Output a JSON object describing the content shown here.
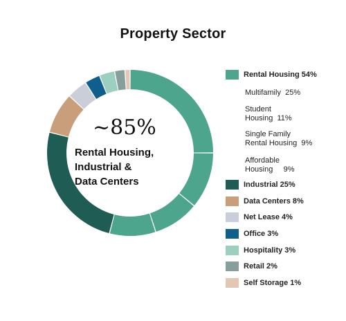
{
  "chart_data": {
    "type": "pie",
    "title": "Property Sector",
    "center_text": {
      "big": "~85%",
      "lines": [
        "Rental Housing,",
        "Industrial &",
        "Data Centers"
      ]
    },
    "slices": [
      {
        "key": "multifamily",
        "value": 25,
        "color": "#4da58e"
      },
      {
        "key": "student",
        "value": 11,
        "color": "#4da58e"
      },
      {
        "key": "single",
        "value": 9,
        "color": "#4da58e"
      },
      {
        "key": "affordable",
        "value": 9,
        "color": "#4da58e"
      },
      {
        "key": "industrial",
        "value": 25,
        "color": "#1e5c54"
      },
      {
        "key": "data_centers",
        "value": 8,
        "color": "#c89f7a"
      },
      {
        "key": "net_lease",
        "value": 4,
        "color": "#c9ced8"
      },
      {
        "key": "office",
        "value": 3,
        "color": "#0f5f8c"
      },
      {
        "key": "hospitality",
        "value": 3,
        "color": "#9ccfc0"
      },
      {
        "key": "retail",
        "value": 2,
        "color": "#869e9c"
      },
      {
        "key": "self_storage",
        "value": 1,
        "color": "#e2c8b2"
      }
    ],
    "legend": {
      "rental_housing": {
        "label": "Rental Housing",
        "value": "54%",
        "color": "#4da58e"
      },
      "multifamily": {
        "label": "Multifamily",
        "value": "25%"
      },
      "student": {
        "line1": "Student",
        "line2": "Housing",
        "value": "11%"
      },
      "single": {
        "line1": "Single Family",
        "line2": "Rental Housing",
        "value": "9%"
      },
      "affordable": {
        "line1": "Affordable",
        "line2": "Housing",
        "value": "9%"
      },
      "industrial": {
        "label": "Industrial",
        "value": "25%",
        "color": "#1e5c54"
      },
      "data_centers": {
        "label": "Data Centers",
        "value": "8%",
        "color": "#c89f7a"
      },
      "net_lease": {
        "label": "Net Lease",
        "value": "4%",
        "color": "#c9ced8"
      },
      "office": {
        "label": "Office",
        "value": "3%",
        "color": "#0f5f8c"
      },
      "hospitality": {
        "label": "Hospitality",
        "value": "3%",
        "color": "#9ccfc0"
      },
      "retail": {
        "label": "Retail",
        "value": "2%",
        "color": "#869e9c"
      },
      "self_storage": {
        "label": "Self Storage",
        "value": "1%",
        "color": "#e2c8b2"
      }
    }
  }
}
